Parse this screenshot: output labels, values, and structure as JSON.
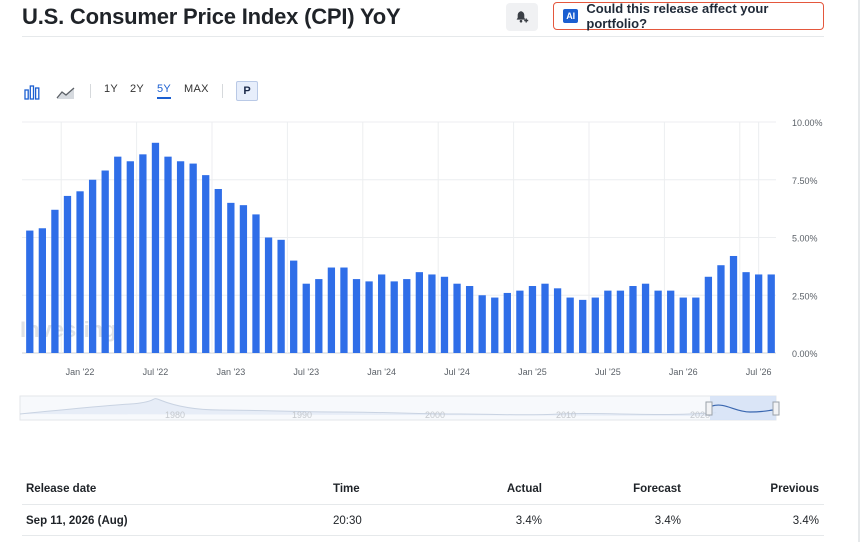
{
  "header": {
    "title": "U.S. Consumer Price Index (CPI) YoY",
    "ai_badge": "AI",
    "ai_button_label": "Could this release affect your portfolio?"
  },
  "toolbar": {
    "ranges": [
      "1Y",
      "2Y",
      "5Y",
      "MAX"
    ],
    "active_range": "5Y",
    "p_label": "P"
  },
  "watermark": "Investing",
  "navigator": {
    "labels": [
      "1980",
      "1990",
      "2000",
      "2010",
      "2020"
    ]
  },
  "chart_data": {
    "type": "bar",
    "color": "#2f6ee8",
    "y_ticks": [
      "10.00%",
      "7.50%",
      "5.00%",
      "2.50%",
      "0.00%"
    ],
    "ylim": [
      0,
      10
    ],
    "x_labels": [
      "Jan '22",
      "Jul '22",
      "Jan '23",
      "Jul '23",
      "Jan '24",
      "Jul '24",
      "Jan '25",
      "Jul '25",
      "Jan '26",
      "Jul '26"
    ],
    "values": [
      5.3,
      5.4,
      6.2,
      6.8,
      7.0,
      7.5,
      7.9,
      8.5,
      8.3,
      8.6,
      9.1,
      8.5,
      8.3,
      8.2,
      7.7,
      7.1,
      6.5,
      6.4,
      6.0,
      5.0,
      4.9,
      4.0,
      3.0,
      3.2,
      3.7,
      3.7,
      3.2,
      3.1,
      3.4,
      3.1,
      3.2,
      3.5,
      3.4,
      3.3,
      3.0,
      2.9,
      2.5,
      2.4,
      2.6,
      2.7,
      2.9,
      3.0,
      2.8,
      2.4,
      2.3,
      2.4,
      2.7,
      2.7,
      2.9,
      3.0,
      2.7,
      2.7,
      2.4,
      2.4,
      3.3,
      3.8,
      4.2,
      3.5,
      3.4,
      3.4
    ]
  },
  "table": {
    "headers": {
      "release_date": "Release date",
      "time": "Time",
      "actual": "Actual",
      "forecast": "Forecast",
      "previous": "Previous"
    },
    "rows": [
      {
        "release_date": "Sep 11, 2026 (Aug)",
        "time": "20:30",
        "actual": "3.4%",
        "forecast": "3.4%",
        "previous": "3.4%"
      }
    ]
  }
}
